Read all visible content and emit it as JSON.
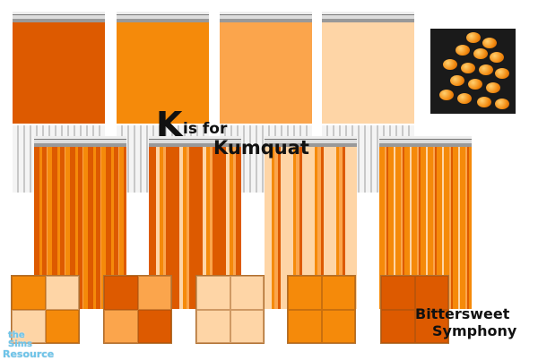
{
  "title": {
    "letter": "K",
    "rest": "is for",
    "word": "Kumquat"
  },
  "subtitle": {
    "line1": "Bittersweet",
    "line2": "Symphony"
  },
  "logo": {
    "line1": "the Sims",
    "line2": "Resource"
  },
  "colors": {
    "dark": "#dd5a00",
    "medium": "#f58a0a",
    "light": "#fba54c",
    "pale": "#fed5a6"
  },
  "photo": {
    "subject": "kumquats"
  }
}
